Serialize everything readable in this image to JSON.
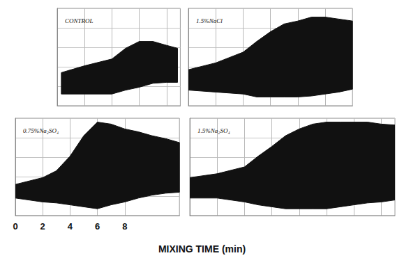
{
  "chart_data": [
    {
      "type": "band",
      "title": "CONTROL",
      "color": "#111111",
      "x": [
        0.3,
        2,
        4,
        5,
        6,
        7,
        8,
        8.8
      ],
      "high": [
        3.4,
        4.1,
        4.8,
        5.9,
        6.6,
        6.6,
        6.2,
        5.9
      ],
      "low": [
        1.2,
        1.2,
        1.2,
        1.6,
        1.9,
        2.3,
        2.4,
        2.4
      ],
      "xlim": [
        0,
        9
      ],
      "ylim": [
        0,
        10
      ],
      "xticks": [
        0,
        2,
        4,
        6,
        8
      ],
      "yticks": [
        0,
        2,
        4,
        6,
        8,
        10
      ],
      "grid": true,
      "tick_labels": false
    },
    {
      "type": "band",
      "title": "1.5%NaCl",
      "color": "#111111",
      "x": [
        0,
        2,
        4,
        5,
        6,
        7,
        8,
        9,
        10,
        11,
        12
      ],
      "high": [
        3.7,
        4.4,
        5.5,
        6.6,
        7.6,
        8.4,
        8.7,
        9.1,
        9.1,
        8.9,
        8.7
      ],
      "low": [
        1.6,
        1.4,
        1.2,
        0.9,
        0.9,
        0.9,
        0.9,
        1.0,
        1.2,
        1.4,
        1.7
      ],
      "xlim": [
        0,
        12
      ],
      "ylim": [
        0,
        10
      ],
      "xticks": [
        0,
        2,
        4,
        6,
        8,
        10,
        12
      ],
      "yticks": [
        0,
        2,
        4,
        6,
        8,
        10
      ],
      "grid": true,
      "tick_labels": false
    },
    {
      "type": "band",
      "title": "0.75%Na₂SO₄",
      "color": "#111111",
      "xlabel": "MIXING TIME (min)",
      "x": [
        0,
        2,
        3,
        4,
        5,
        6,
        7,
        8,
        9,
        10,
        11,
        12
      ],
      "high": [
        3.2,
        3.9,
        4.6,
        6.1,
        8.2,
        9.6,
        9.4,
        8.9,
        8.6,
        8.2,
        7.9,
        7.5
      ],
      "low": [
        1.8,
        1.4,
        1.3,
        1.1,
        0.9,
        0.7,
        1.1,
        1.4,
        1.8,
        2.1,
        2.3,
        2.4
      ],
      "xlim": [
        0,
        12
      ],
      "ylim": [
        0,
        10
      ],
      "xticks": [
        0,
        2,
        4,
        6,
        8
      ],
      "yticks": [
        0,
        2,
        4,
        6,
        8,
        10
      ],
      "grid": true,
      "tick_labels": "x"
    },
    {
      "type": "band",
      "title": "1.5%Na₂SO₄",
      "color": "#111111",
      "x": [
        0,
        2,
        4,
        5,
        6,
        7,
        8,
        9,
        10,
        11,
        12,
        13,
        14,
        15
      ],
      "high": [
        3.9,
        4.3,
        5.0,
        6.1,
        7.1,
        8.2,
        8.9,
        9.4,
        9.6,
        9.6,
        9.6,
        9.6,
        9.4,
        9.3
      ],
      "low": [
        1.8,
        1.8,
        1.4,
        1.1,
        0.9,
        0.7,
        0.7,
        0.7,
        0.7,
        0.9,
        1.1,
        1.3,
        1.4,
        1.6
      ],
      "xlim": [
        0,
        15
      ],
      "ylim": [
        0,
        10
      ],
      "xticks": [
        0,
        2,
        4,
        6,
        8,
        10,
        12,
        14
      ],
      "yticks": [
        0,
        2,
        4,
        6,
        8,
        10
      ],
      "grid": true,
      "tick_labels": false
    }
  ]
}
